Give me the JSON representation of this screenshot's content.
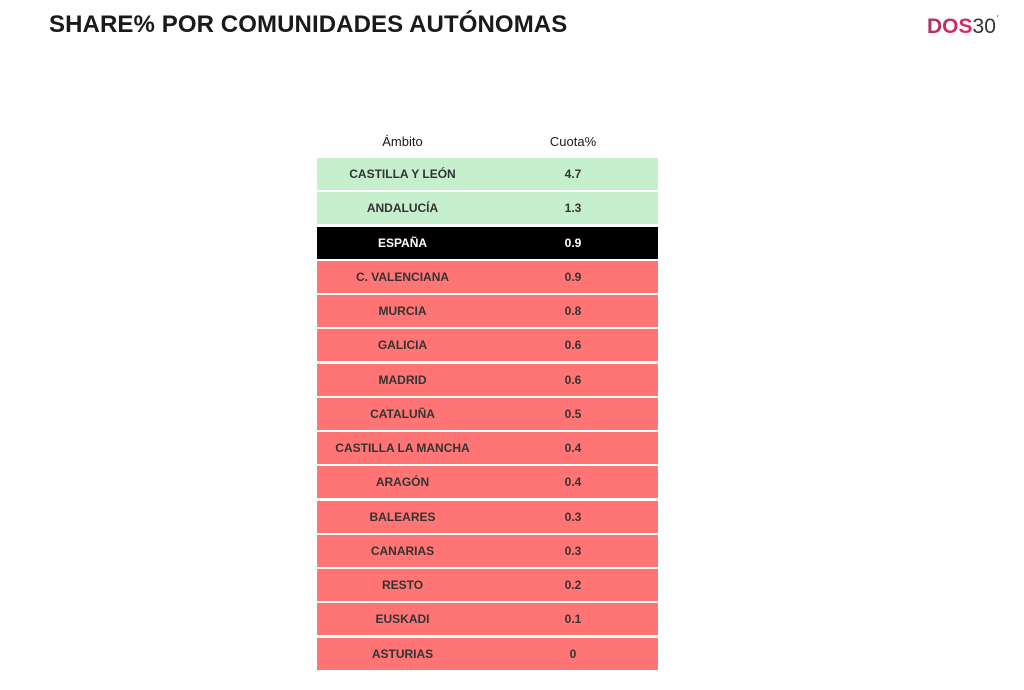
{
  "header": {
    "title": "SHARE% POR COMUNIDADES AUTÓNOMAS",
    "logo": {
      "brand": "DOS",
      "number": "30",
      "mark": "'"
    }
  },
  "colors": {
    "above_national": "#c6efce",
    "below_national": "#ff7575",
    "national": "#000000"
  },
  "chart_data": {
    "type": "table",
    "title": "SHARE% POR COMUNIDADES AUTÓNOMAS",
    "columns": [
      "Ámbito",
      "Cuota%"
    ],
    "rows": [
      {
        "ambito": "CASTILLA Y LEÓN",
        "cuota": "4.7",
        "status": "pos"
      },
      {
        "ambito": "ANDALUCÍA",
        "cuota": "1.3",
        "status": "pos"
      },
      {
        "ambito": "ESPAÑA",
        "cuota": "0.9",
        "status": "total"
      },
      {
        "ambito": "C. VALENCIANA",
        "cuota": "0.9",
        "status": "neg"
      },
      {
        "ambito": "MURCIA",
        "cuota": "0.8",
        "status": "neg"
      },
      {
        "ambito": "GALICIA",
        "cuota": "0.6",
        "status": "neg"
      },
      {
        "ambito": "MADRID",
        "cuota": "0.6",
        "status": "neg"
      },
      {
        "ambito": "CATALUÑA",
        "cuota": "0.5",
        "status": "neg"
      },
      {
        "ambito": "CASTILLA LA MANCHA",
        "cuota": "0.4",
        "status": "neg"
      },
      {
        "ambito": "ARAGÓN",
        "cuota": "0.4",
        "status": "neg"
      },
      {
        "ambito": "BALEARES",
        "cuota": "0.3",
        "status": "neg"
      },
      {
        "ambito": "CANARIAS",
        "cuota": "0.3",
        "status": "neg"
      },
      {
        "ambito": "RESTO",
        "cuota": "0.2",
        "status": "neg"
      },
      {
        "ambito": "EUSKADI",
        "cuota": "0.1",
        "status": "neg"
      },
      {
        "ambito": "ASTURIAS",
        "cuota": "0",
        "status": "neg"
      }
    ]
  }
}
